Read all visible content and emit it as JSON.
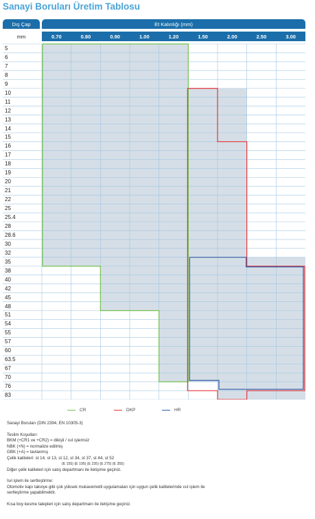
{
  "title": "Sanayi Boruları Üretim Tablosu",
  "table": {
    "header_outer": "Dış Çap",
    "header_thickness": "Et Kalınlığı (mm)",
    "header_unit": "mm",
    "columns": [
      "0.70",
      "0.80",
      "0.90",
      "1.00",
      "1.20",
      "1.50",
      "2.00",
      "2.50",
      "3.00"
    ],
    "rows": [
      "5",
      "6",
      "7",
      "8",
      "9",
      "10",
      "11",
      "12",
      "13",
      "14",
      "15",
      "16",
      "17",
      "18",
      "19",
      "20",
      "21",
      "22",
      "25",
      "25.4",
      "28",
      "28.6",
      "30",
      "32",
      "35",
      "38",
      "40",
      "42",
      "45",
      "48",
      "51",
      "54",
      "55",
      "57",
      "60",
      "63.5",
      "67",
      "70",
      "76",
      "83"
    ],
    "colors": {
      "header": "#1b6ea9",
      "fill": "#d5dee6",
      "grid": "#9fc4e2",
      "cr": "#74c152",
      "dkp": "#e3343a",
      "hr": "#2f5aa8"
    }
  },
  "legend": [
    {
      "label": "CR",
      "color": "#74c152"
    },
    {
      "label": "DKP",
      "color": "#e3343a"
    },
    {
      "label": "HR",
      "color": "#2f5aa8"
    }
  ],
  "notes": {
    "standard": "Sanayi Boruları (DIN 2394, EN 10305-3)",
    "delivery_title": "Teslim Koşulları:",
    "bkm": "BKM (+CR1 ve +CR2) = dikişli / ısıl işlemsiz",
    "nbk": "NBK (+N) = normalize edilmiş",
    "gbk": "GBK (+A) = tavlanmış",
    "grades": "Çelik kaliteleri: st 14, st 13, st 12, st 34, st 37, st 44, st 52",
    "grades_sub": "(E 155) (E 195) (E 235) (E 275) (E 355)",
    "other": "Diğer çelik kaliteleri için satış departmanı ile iletişime geçiniz.",
    "heat_title": "Isıl işlem ile sertleştirme:",
    "heat_line1": "Otomotiv kapı takviye gibi çok yüksek mukavemetli uygulamaları için uygun çelik kalitelerinde ısıl işlem ile",
    "heat_line2": "sertleştirme yapabilmektir.",
    "short": "Kısa boy kesme talepleri için satış departmanı ile iletişime geçiniz."
  }
}
